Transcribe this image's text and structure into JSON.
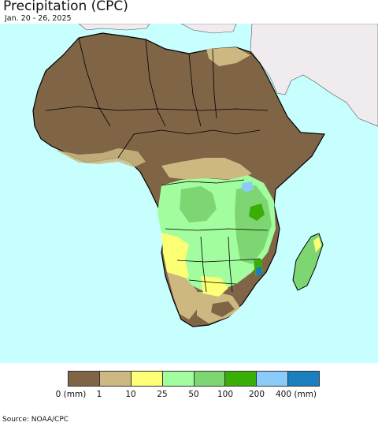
{
  "header": {
    "title": "Precipitation (CPC)",
    "subtitle": "Jan. 20 - 26, 2025"
  },
  "map": {
    "region": "Africa",
    "ocean_color": "#c7fffe",
    "non_africa_land_color": "#efebef",
    "border_color": "#000000"
  },
  "legend": {
    "colors": [
      "#7f6446",
      "#cdb882",
      "#fdff74",
      "#a1fd9e",
      "#7ed673",
      "#3aae06",
      "#8bcbfa",
      "#1a7ebf"
    ],
    "ticks": [
      "0 (mm)",
      "1",
      "10",
      "25",
      "50",
      "100",
      "200",
      "400 (mm)"
    ]
  },
  "footer": {
    "source": "Source: NOAA/CPC"
  }
}
